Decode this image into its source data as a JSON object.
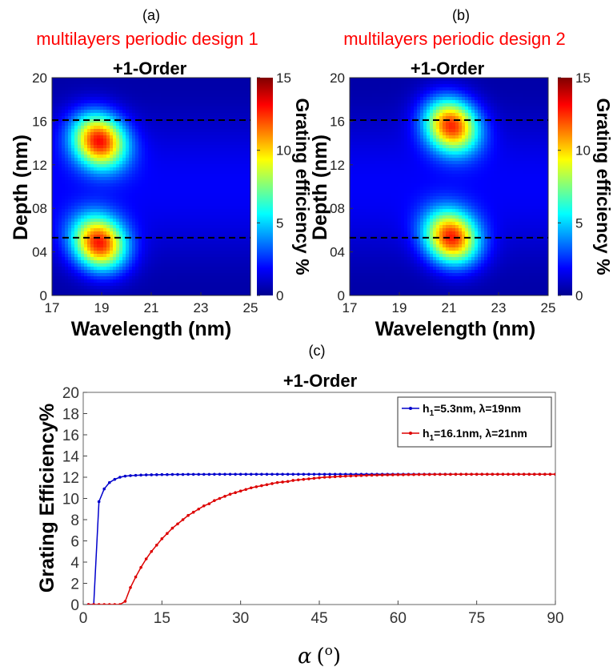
{
  "panels": {
    "a": {
      "tag": "(a)",
      "design_title": "multilayers periodic design 1",
      "order_title": "+1-Order",
      "xlabel": "Wavelength (nm)",
      "ylabel": "Depth (nm)",
      "colorbar_label": "Grating efficiency %"
    },
    "b": {
      "tag": "(b)",
      "design_title": "multilayers periodic design 2",
      "order_title": "+1-Order",
      "xlabel": "Wavelength (nm)",
      "ylabel": "Depth (nm)",
      "colorbar_label": "Grating efficiency %"
    },
    "c": {
      "tag": "(c)",
      "title": "+1-Order",
      "ylabel": "Grating Efficiency%",
      "xlabel_symbol": "α",
      "xlabel_unit_open": "(",
      "xlabel_unit_sup": "o",
      "xlabel_unit_close": ")"
    }
  },
  "chart_data": [
    {
      "type": "heatmap",
      "panel": "a",
      "title": "+1-Order",
      "xlabel": "Wavelength (nm)",
      "ylabel": "Depth (nm)",
      "xlim": [
        17,
        25
      ],
      "ylim": [
        0,
        20
      ],
      "xticks": [
        "17",
        "19",
        "21",
        "23",
        "25"
      ],
      "yticks": [
        "0",
        "04",
        "08",
        "12",
        "16",
        "20"
      ],
      "colorbar": {
        "label": "Grating efficiency %",
        "range": [
          0,
          15
        ],
        "ticks": [
          "0",
          "5",
          "10",
          "15"
        ]
      },
      "reference_lines_depth": [
        5.3,
        16.1
      ],
      "peaks": [
        {
          "wavelength": 18.9,
          "depth": 14.2,
          "efficiency": 13.2
        },
        {
          "wavelength": 18.9,
          "depth": 4.8,
          "efficiency": 13.2
        }
      ]
    },
    {
      "type": "heatmap",
      "panel": "b",
      "title": "+1-Order",
      "xlabel": "Wavelength (nm)",
      "ylabel": "Depth (nm)",
      "xlim": [
        17,
        25
      ],
      "ylim": [
        0,
        20
      ],
      "xticks": [
        "17",
        "19",
        "21",
        "23",
        "25"
      ],
      "yticks": [
        "0",
        "04",
        "08",
        "12",
        "16",
        "20"
      ],
      "colorbar": {
        "label": "Grating efficiency %",
        "range": [
          0,
          15
        ],
        "ticks": [
          "0",
          "5",
          "10",
          "15"
        ]
      },
      "reference_lines_depth": [
        5.3,
        16.1
      ],
      "peaks": [
        {
          "wavelength": 21.1,
          "depth": 15.6,
          "efficiency": 13.0
        },
        {
          "wavelength": 21.1,
          "depth": 5.3,
          "efficiency": 13.0
        }
      ]
    },
    {
      "type": "line",
      "panel": "c",
      "title": "+1-Order",
      "ylabel": "Grating Efficiency%",
      "xlim": [
        0,
        90
      ],
      "ylim": [
        0,
        20
      ],
      "xticks": [
        "0",
        "15",
        "30",
        "45",
        "60",
        "75",
        "90"
      ],
      "yticks": [
        "0",
        "2",
        "4",
        "6",
        "8",
        "10",
        "12",
        "14",
        "16",
        "18",
        "20"
      ],
      "legend_position": "top-right",
      "series": [
        {
          "name_main": "h",
          "name_sub": "1",
          "name_rest": "=5.3nm, λ=19nm",
          "color": "#0000cc",
          "x": [
            1,
            2,
            3,
            4,
            5,
            6,
            7,
            8,
            9,
            10,
            11,
            12,
            13,
            14,
            15,
            16,
            17,
            18,
            19,
            20,
            21,
            22,
            23,
            24,
            25,
            26,
            27,
            28,
            29,
            30,
            31,
            32,
            33,
            34,
            35,
            36,
            37,
            38,
            39,
            40,
            41,
            42,
            43,
            44,
            45,
            46,
            47,
            48,
            49,
            50,
            51,
            52,
            53,
            54,
            55,
            56,
            57,
            58,
            59,
            60,
            61,
            62,
            63,
            64,
            65,
            66,
            67,
            68,
            69,
            70,
            71,
            72,
            73,
            74,
            75,
            76,
            77,
            78,
            79,
            80,
            81,
            82,
            83,
            84,
            85,
            86,
            87,
            88,
            89,
            90
          ],
          "y": [
            0,
            0,
            9.7,
            10.9,
            11.5,
            11.8,
            12.0,
            12.1,
            12.15,
            12.18,
            12.2,
            12.22,
            12.23,
            12.24,
            12.25,
            12.25,
            12.26,
            12.26,
            12.26,
            12.27,
            12.27,
            12.27,
            12.27,
            12.27,
            12.28,
            12.28,
            12.28,
            12.28,
            12.28,
            12.28,
            12.28,
            12.28,
            12.28,
            12.28,
            12.28,
            12.28,
            12.28,
            12.28,
            12.28,
            12.28,
            12.28,
            12.28,
            12.28,
            12.28,
            12.28,
            12.28,
            12.28,
            12.28,
            12.28,
            12.28,
            12.28,
            12.28,
            12.28,
            12.28,
            12.28,
            12.28,
            12.28,
            12.28,
            12.28,
            12.28,
            12.28,
            12.28,
            12.28,
            12.28,
            12.28,
            12.28,
            12.28,
            12.28,
            12.28,
            12.28,
            12.28,
            12.28,
            12.28,
            12.28,
            12.28,
            12.28,
            12.28,
            12.28,
            12.28,
            12.28,
            12.28,
            12.28,
            12.28,
            12.28,
            12.28,
            12.28,
            12.28,
            12.28,
            12.28,
            12.28
          ]
        },
        {
          "name_main": "h",
          "name_sub": "1",
          "name_rest": "=16.1nm, λ=21nm",
          "color": "#dd0000",
          "x": [
            1,
            2,
            3,
            4,
            5,
            6,
            7,
            8,
            9,
            10,
            11,
            12,
            13,
            14,
            15,
            16,
            17,
            18,
            19,
            20,
            21,
            22,
            23,
            24,
            25,
            26,
            27,
            28,
            29,
            30,
            31,
            32,
            33,
            34,
            35,
            36,
            37,
            38,
            39,
            40,
            41,
            42,
            43,
            44,
            45,
            46,
            47,
            48,
            49,
            50,
            51,
            52,
            53,
            54,
            55,
            56,
            57,
            58,
            59,
            60,
            61,
            62,
            63,
            64,
            65,
            66,
            67,
            68,
            69,
            70,
            71,
            72,
            73,
            74,
            75,
            76,
            77,
            78,
            79,
            80,
            81,
            82,
            83,
            84,
            85,
            86,
            87,
            88,
            89,
            90
          ],
          "y": [
            0,
            0,
            0,
            0,
            0,
            0,
            0,
            0.3,
            1.6,
            2.6,
            3.5,
            4.3,
            5.0,
            5.6,
            6.2,
            6.7,
            7.2,
            7.6,
            8.0,
            8.4,
            8.7,
            9.0,
            9.3,
            9.5,
            9.8,
            10.0,
            10.2,
            10.4,
            10.55,
            10.7,
            10.85,
            11.0,
            11.1,
            11.2,
            11.3,
            11.4,
            11.5,
            11.55,
            11.6,
            11.7,
            11.75,
            11.8,
            11.85,
            11.9,
            11.95,
            12.0,
            12.02,
            12.05,
            12.08,
            12.1,
            12.12,
            12.14,
            12.16,
            12.18,
            12.19,
            12.2,
            12.21,
            12.22,
            12.23,
            12.24,
            12.24,
            12.25,
            12.25,
            12.26,
            12.26,
            12.26,
            12.27,
            12.27,
            12.27,
            12.27,
            12.28,
            12.28,
            12.28,
            12.28,
            12.28,
            12.28,
            12.28,
            12.28,
            12.28,
            12.28,
            12.28,
            12.28,
            12.28,
            12.28,
            12.28,
            12.28,
            12.28,
            12.28,
            12.28,
            12.28
          ]
        }
      ]
    }
  ]
}
